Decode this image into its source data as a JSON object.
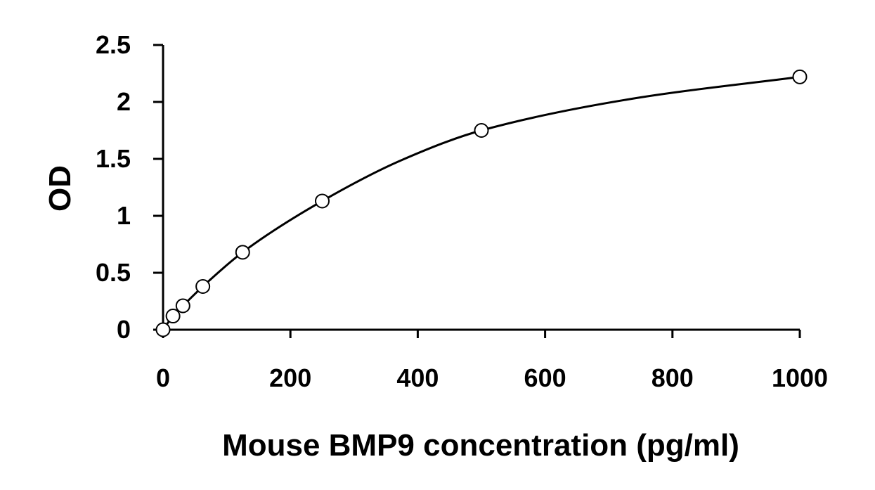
{
  "chart_data": {
    "type": "scatter",
    "title": "",
    "xlabel": "Mouse BMP9 concentration (pg/ml)",
    "ylabel": "OD",
    "xlim": [
      0,
      1000
    ],
    "ylim": [
      0,
      2.5
    ],
    "x_ticks": [
      0,
      200,
      400,
      600,
      800,
      1000
    ],
    "x_tick_labels": [
      "0",
      "200",
      "400",
      "600",
      "800",
      "1000"
    ],
    "y_ticks": [
      0,
      0.5,
      1,
      1.5,
      2,
      2.5
    ],
    "y_tick_labels": [
      "0",
      "0.5",
      "1",
      "1.5",
      "2",
      "2.5"
    ],
    "grid": false,
    "legend": "none",
    "series": [
      {
        "marker": "open-circle",
        "points": [
          {
            "x": 0,
            "y": 0.0
          },
          {
            "x": 15.6,
            "y": 0.12
          },
          {
            "x": 31.25,
            "y": 0.21
          },
          {
            "x": 62.5,
            "y": 0.38
          },
          {
            "x": 125,
            "y": 0.68
          },
          {
            "x": 250,
            "y": 1.13
          },
          {
            "x": 500,
            "y": 1.75
          },
          {
            "x": 1000,
            "y": 2.22
          }
        ]
      }
    ],
    "fit_curve": {
      "style": "smooth-line",
      "points": [
        {
          "x": 0,
          "y": 0.0
        },
        {
          "x": 15.6,
          "y": 0.12
        },
        {
          "x": 31.25,
          "y": 0.21
        },
        {
          "x": 62.5,
          "y": 0.38
        },
        {
          "x": 125,
          "y": 0.68
        },
        {
          "x": 250,
          "y": 1.13
        },
        {
          "x": 375,
          "y": 1.49
        },
        {
          "x": 500,
          "y": 1.75
        },
        {
          "x": 750,
          "y": 2.04
        },
        {
          "x": 1000,
          "y": 2.22
        }
      ]
    },
    "colors": {
      "axis": "#000000",
      "line": "#000000",
      "marker_fill": "#ffffff"
    }
  }
}
